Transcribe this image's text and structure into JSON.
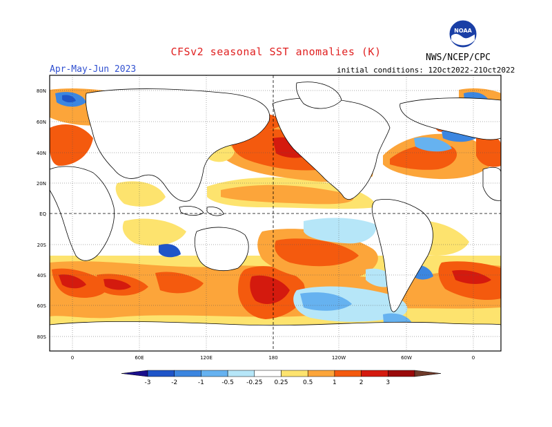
{
  "title": "CFSv2 seasonal SST anomalies (K)",
  "season": "Apr-May-Jun 2023",
  "initial_conditions": "initial conditions: 12Oct2022-21Oct2022",
  "agency": "NWS/NCEP/CPC",
  "logo_text": "NOAA",
  "lat_labels": [
    "80N",
    "60N",
    "40N",
    "20N",
    "EQ",
    "20S",
    "40S",
    "60S",
    "80S"
  ],
  "lon_labels": [
    "0",
    "60E",
    "120E",
    "180",
    "120W",
    "60W",
    "0"
  ],
  "colorbar": {
    "labels": [
      "-3",
      "-2",
      "-1",
      "-0.5",
      "-0.25",
      "0.25",
      "0.5",
      "1",
      "2",
      "3"
    ],
    "colors": [
      "#1a0f8c",
      "#1f55c8",
      "#3c86e0",
      "#66b2f0",
      "#b6e6f8",
      "#ffffff",
      "#fde36e",
      "#fca53a",
      "#f45a0e",
      "#d41a0e",
      "#9a0a0a",
      "#6e3a2a"
    ]
  },
  "colors": {
    "title": "#e02020",
    "season": "#3050d0",
    "land_outline": "#000000"
  }
}
